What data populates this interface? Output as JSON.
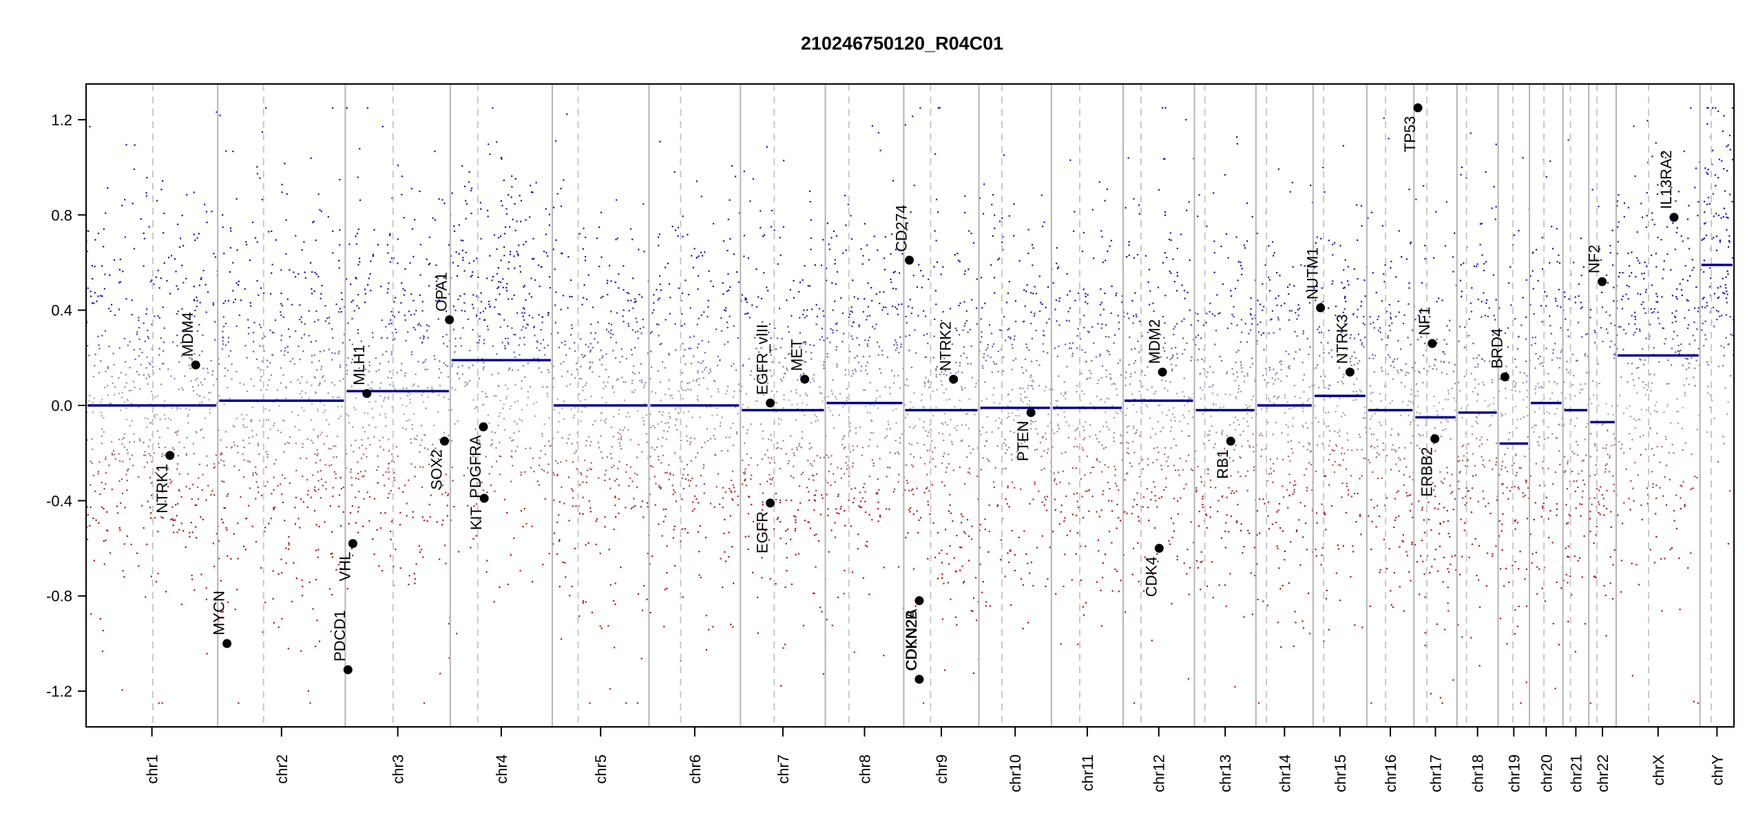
{
  "chart_data": {
    "type": "scatter",
    "title": "210246750120_R04C01",
    "xlabel": "",
    "ylabel": "",
    "ylim": [
      -1.35,
      1.35
    ],
    "clip": [
      -1.25,
      1.25
    ],
    "yticks": [
      -1.2,
      -0.8,
      -0.4,
      0.0,
      0.4,
      0.8,
      1.2
    ],
    "ytick_labels": [
      "-1.2",
      "-0.8",
      "-0.4",
      "0.0",
      "0.4",
      "0.8",
      "1.2"
    ],
    "colors": {
      "gain": "#1010c0",
      "loss": "#b01010",
      "neutral": "#b0b0b0",
      "segment": "#00008b",
      "boundary": "#b4b4b4",
      "centromere": "#c8c8c8",
      "gene_dot": "#000000"
    },
    "chromosomes": [
      {
        "name": "chr1",
        "start": 0.0,
        "end": 0.0799,
        "centromere": 0.0405,
        "segment": 0.0
      },
      {
        "name": "chr2",
        "start": 0.0799,
        "end": 0.1573,
        "centromere": 0.1077,
        "segment": 0.02
      },
      {
        "name": "chr3",
        "start": 0.1573,
        "end": 0.221,
        "centromere": 0.1863,
        "segment": 0.06
      },
      {
        "name": "chr4",
        "start": 0.221,
        "end": 0.2829,
        "centromere": 0.2377,
        "segment": 0.19
      },
      {
        "name": "chr5",
        "start": 0.2829,
        "end": 0.3416,
        "centromere": 0.2986,
        "segment": 0.0
      },
      {
        "name": "chr6",
        "start": 0.3416,
        "end": 0.3971,
        "centromere": 0.3608,
        "segment": 0.0
      },
      {
        "name": "chr7",
        "start": 0.3971,
        "end": 0.4486,
        "centromere": 0.4176,
        "segment": -0.02
      },
      {
        "name": "chr8",
        "start": 0.4486,
        "end": 0.4962,
        "centromere": 0.4629,
        "segment": 0.01
      },
      {
        "name": "chr9",
        "start": 0.4962,
        "end": 0.5418,
        "centromere": 0.5125,
        "segment": -0.02
      },
      {
        "name": "chr10",
        "start": 0.5418,
        "end": 0.5858,
        "centromere": 0.5558,
        "segment": -0.01
      },
      {
        "name": "chr11",
        "start": 0.5858,
        "end": 0.6293,
        "centromere": 0.603,
        "segment": -0.01
      },
      {
        "name": "chr12",
        "start": 0.6293,
        "end": 0.6726,
        "centromere": 0.6402,
        "segment": 0.02
      },
      {
        "name": "chr13",
        "start": 0.6726,
        "end": 0.7099,
        "centromere": 0.6789,
        "segment": -0.02
      },
      {
        "name": "chr14",
        "start": 0.7099,
        "end": 0.7446,
        "centromere": 0.7163,
        "segment": 0.0
      },
      {
        "name": "chr15",
        "start": 0.7446,
        "end": 0.7772,
        "centromere": 0.751,
        "segment": 0.04
      },
      {
        "name": "chr16",
        "start": 0.7772,
        "end": 0.8058,
        "centromere": 0.7886,
        "segment": -0.02
      },
      {
        "name": "chr17",
        "start": 0.8058,
        "end": 0.8319,
        "centromere": 0.8136,
        "segment": -0.05
      },
      {
        "name": "chr18",
        "start": 0.8319,
        "end": 0.8569,
        "centromere": 0.8377,
        "segment": -0.03
      },
      {
        "name": "chr19",
        "start": 0.8569,
        "end": 0.8759,
        "centromere": 0.8658,
        "segment": -0.16
      },
      {
        "name": "chr20",
        "start": 0.8759,
        "end": 0.8962,
        "centromere": 0.8847,
        "segment": 0.01
      },
      {
        "name": "chr21",
        "start": 0.8962,
        "end": 0.9119,
        "centromere": 0.9008,
        "segment": -0.02
      },
      {
        "name": "chr22",
        "start": 0.9119,
        "end": 0.9285,
        "centromere": 0.9168,
        "segment": -0.07
      },
      {
        "name": "chrX",
        "start": 0.9285,
        "end": 0.9794,
        "centromere": 0.9482,
        "segment": 0.21
      },
      {
        "name": "chrY",
        "start": 0.9794,
        "end": 1.0,
        "centromere": 0.9862,
        "segment": 0.59
      }
    ],
    "genes": [
      {
        "name": "MDM4",
        "x": 0.0665,
        "y": 0.17,
        "label": "above"
      },
      {
        "name": "NTRK1",
        "x": 0.0509,
        "y": -0.21,
        "label": "below"
      },
      {
        "name": "MYCN",
        "x": 0.0855,
        "y": -1.0,
        "label": "above"
      },
      {
        "name": "PDCD1",
        "x": 0.1589,
        "y": -1.11,
        "label": "above"
      },
      {
        "name": "VHL",
        "x": 0.1619,
        "y": -0.58,
        "label": "below"
      },
      {
        "name": "MLH1",
        "x": 0.1704,
        "y": 0.05,
        "label": "above"
      },
      {
        "name": "SOX2",
        "x": 0.2175,
        "y": -0.15,
        "label": "below"
      },
      {
        "name": "OPA1",
        "x": 0.2205,
        "y": 0.36,
        "label": "above"
      },
      {
        "name": "KIT",
        "x": 0.2416,
        "y": -0.39,
        "label": "below"
      },
      {
        "name": "PDGFRA",
        "x": 0.2411,
        "y": -0.09,
        "label": "below"
      },
      {
        "name": "EGFR_vIII",
        "x": 0.4152,
        "y": 0.01,
        "label": "above"
      },
      {
        "name": "EGFR",
        "x": 0.4152,
        "y": -0.41,
        "label": "below"
      },
      {
        "name": "MET",
        "x": 0.4361,
        "y": 0.11,
        "label": "above"
      },
      {
        "name": "CD274",
        "x": 0.4996,
        "y": 0.61,
        "label": "above"
      },
      {
        "name": "CDKN2A",
        "x": 0.5056,
        "y": -0.82,
        "label": "below"
      },
      {
        "name": "CDKN2B",
        "x": 0.5056,
        "y": -1.15,
        "label": "above"
      },
      {
        "name": "NTRK2",
        "x": 0.5264,
        "y": 0.11,
        "label": "above"
      },
      {
        "name": "PTEN",
        "x": 0.5734,
        "y": -0.03,
        "label": "below"
      },
      {
        "name": "MDM2",
        "x": 0.6532,
        "y": 0.14,
        "label": "above"
      },
      {
        "name": "CDK4",
        "x": 0.6512,
        "y": -0.6,
        "label": "below"
      },
      {
        "name": "RB1",
        "x": 0.6946,
        "y": -0.15,
        "label": "below"
      },
      {
        "name": "NUTM1",
        "x": 0.7491,
        "y": 0.41,
        "label": "above"
      },
      {
        "name": "NTRK3",
        "x": 0.767,
        "y": 0.14,
        "label": "above"
      },
      {
        "name": "TP53",
        "x": 0.8082,
        "y": 1.25,
        "label": "below"
      },
      {
        "name": "NF1",
        "x": 0.8169,
        "y": 0.26,
        "label": "above"
      },
      {
        "name": "ERBB2",
        "x": 0.8185,
        "y": -0.14,
        "label": "below"
      },
      {
        "name": "BRD4",
        "x": 0.861,
        "y": 0.12,
        "label": "above"
      },
      {
        "name": "NF2",
        "x": 0.92,
        "y": 0.52,
        "label": "above"
      },
      {
        "name": "IL13RA2",
        "x": 0.9636,
        "y": 0.79,
        "label": "above"
      }
    ]
  }
}
